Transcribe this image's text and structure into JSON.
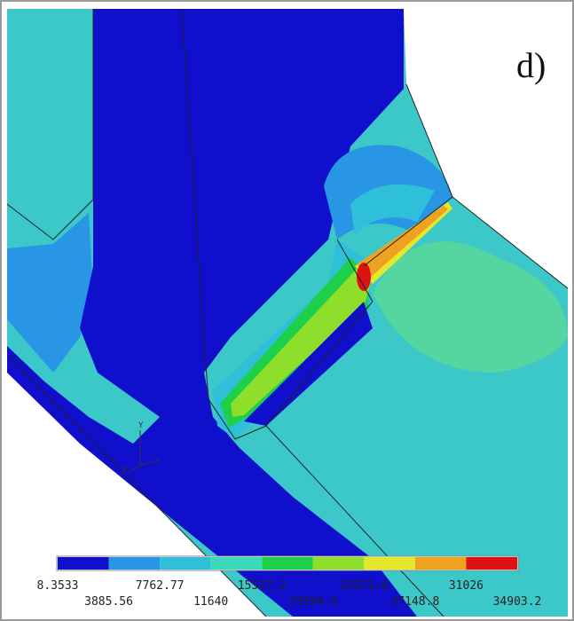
{
  "panel_label": "d)",
  "legend": {
    "colors": [
      "#1010cc",
      "#2896e4",
      "#2ec0d8",
      "#3cd8bc",
      "#1ecf4a",
      "#8edf2c",
      "#e6e62a",
      "#eea220",
      "#de1212"
    ],
    "labels_top": [
      "8.3533",
      "7762.77",
      "15517.2",
      "23271.6",
      "31026"
    ],
    "labels_bottom": [
      "3885.56",
      "11640",
      "19394.4",
      "27148.8",
      "34903.2"
    ]
  },
  "triad": [
    "Y",
    "Z",
    "X"
  ]
}
